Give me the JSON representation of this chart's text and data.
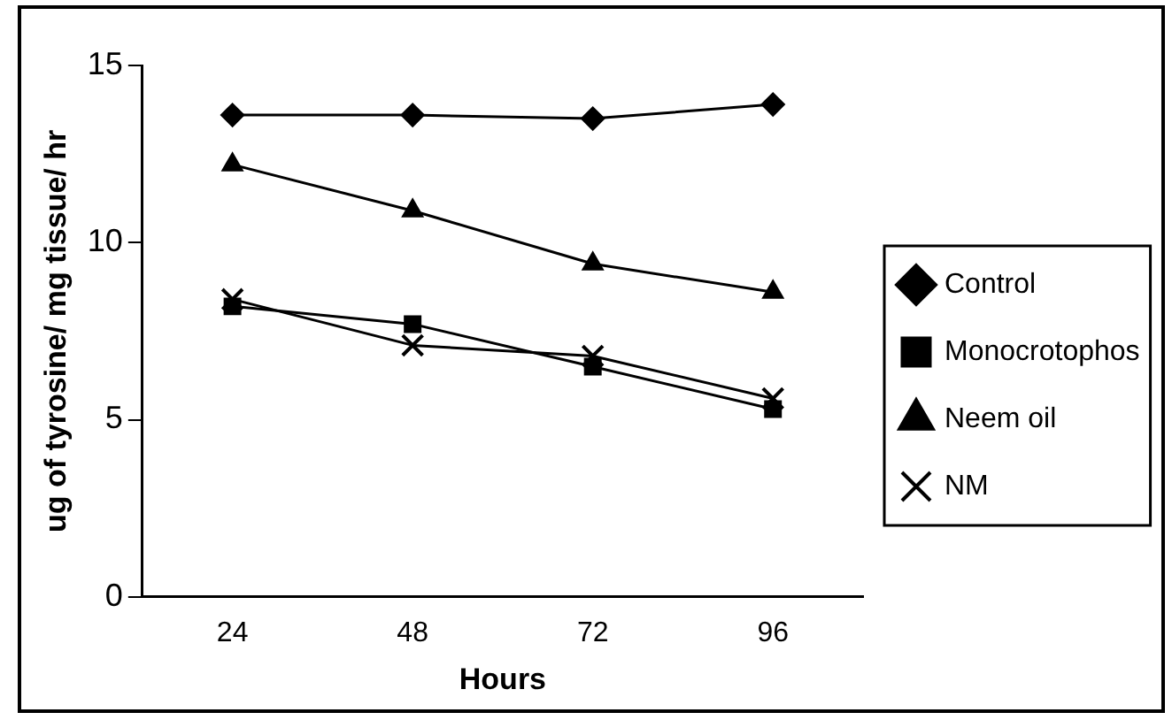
{
  "chart_data": {
    "type": "line",
    "xlabel": "Hours",
    "ylabel": "ug of tyrosine/ mg tissue/ hr",
    "categories": [
      "24",
      "48",
      "72",
      "96"
    ],
    "series": [
      {
        "name": "Control",
        "color": "#000000",
        "marker": "diamond",
        "values": [
          13.6,
          13.6,
          13.5,
          13.9
        ]
      },
      {
        "name": "Monocrotophos",
        "color": "#000000",
        "marker": "square",
        "values": [
          8.2,
          7.7,
          6.5,
          5.3
        ]
      },
      {
        "name": "Neem oil",
        "color": "#000000",
        "marker": "triangle",
        "values": [
          12.2,
          10.9,
          9.4,
          8.6
        ]
      },
      {
        "name": "NM",
        "color": "#000000",
        "marker": "cross",
        "values": [
          8.4,
          7.1,
          6.8,
          5.6
        ]
      }
    ],
    "ylim": [
      0,
      15
    ],
    "yticks": [
      0,
      5,
      10,
      15
    ],
    "grid": false,
    "legend": "right",
    "line_style": "solid"
  }
}
